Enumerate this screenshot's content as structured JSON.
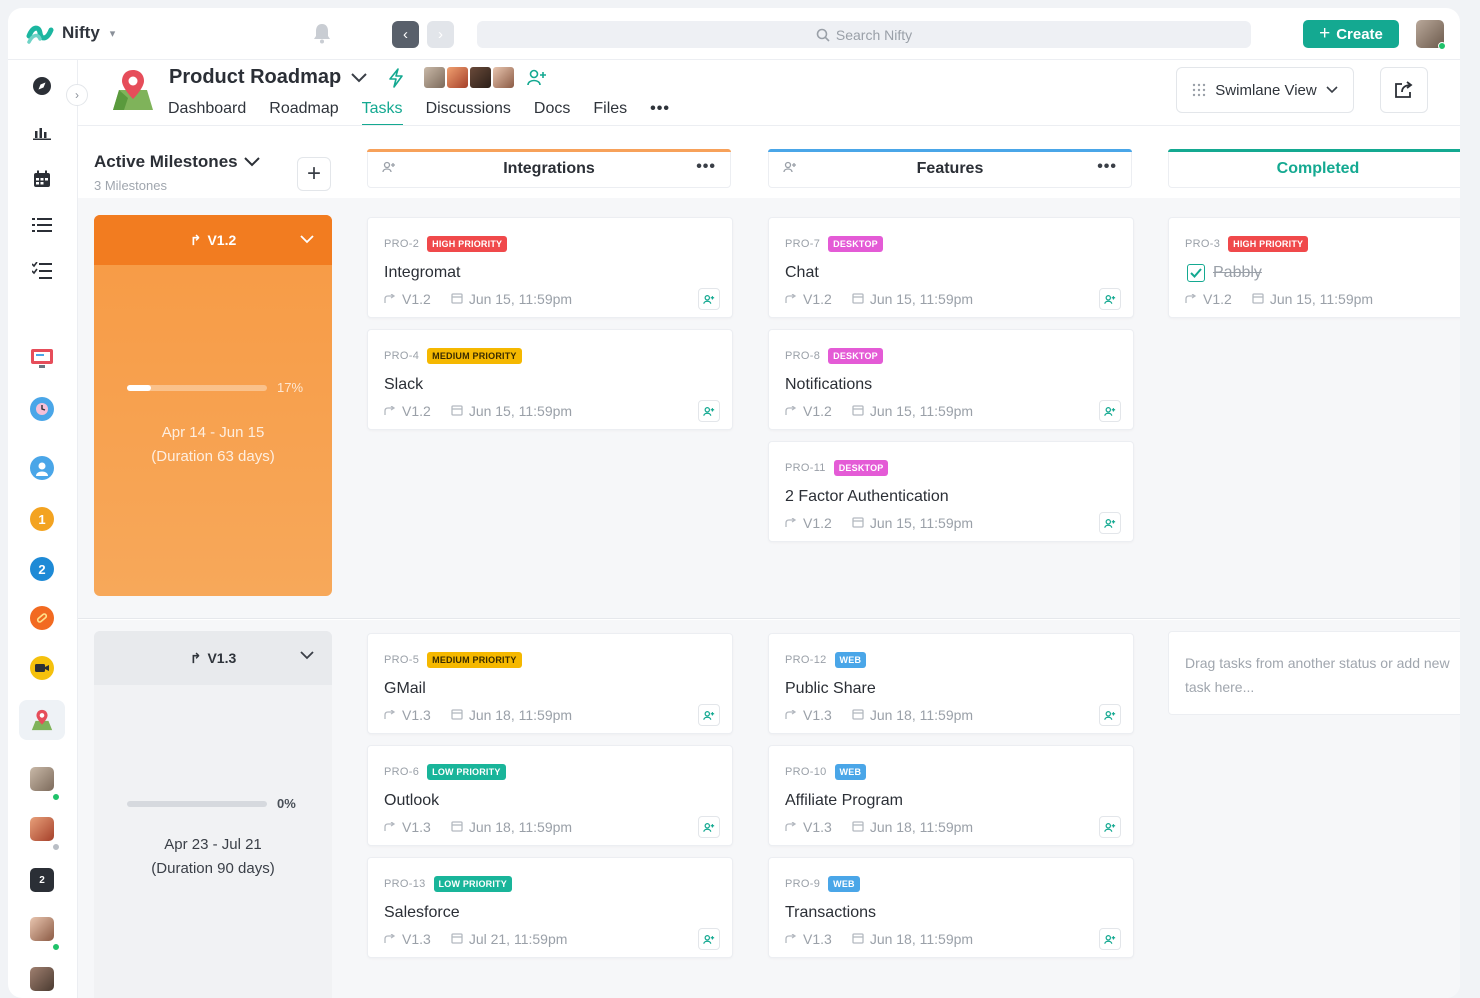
{
  "app": {
    "brand": "Nifty",
    "search_placeholder": "Search Nifty",
    "create_label": "Create"
  },
  "project": {
    "title": "Product Roadmap",
    "tabs": [
      {
        "label": "Dashboard",
        "active": false
      },
      {
        "label": "Roadmap",
        "active": false
      },
      {
        "label": "Tasks",
        "active": true
      },
      {
        "label": "Discussions",
        "active": false
      },
      {
        "label": "Docs",
        "active": false
      },
      {
        "label": "Files",
        "active": false
      }
    ],
    "view_label": "Swimlane View"
  },
  "sidebar": {
    "badges": [
      "1",
      "2",
      "2"
    ]
  },
  "milestones_panel": {
    "title": "Active Milestones",
    "count_label": "3 Milestones"
  },
  "columns": [
    {
      "title": "Integrations",
      "accent": "#f7a15a"
    },
    {
      "title": "Features",
      "accent": "#4aa6e8"
    },
    {
      "title": "Completed",
      "accent": "#14a991"
    }
  ],
  "lanes": [
    {
      "milestone": {
        "name": "V1.2",
        "progress_label": "17%",
        "progress": 0.17,
        "dates": "Apr 14 - Jun 15",
        "duration": "(Duration 63 days)"
      },
      "integrations": [
        {
          "code": "PRO-2",
          "badge": "HIGH PRIORITY",
          "badge_color": "#f0494b",
          "title": "Integromat",
          "version": "V1.2",
          "due": "Jun 15, 11:59pm"
        },
        {
          "code": "PRO-4",
          "badge": "MEDIUM PRIORITY",
          "badge_color": "#f5b800",
          "badge_text": "#3a2c00",
          "title": "Slack",
          "version": "V1.2",
          "due": "Jun 15, 11:59pm"
        }
      ],
      "features": [
        {
          "code": "PRO-7",
          "badge": "DESKTOP",
          "badge_color": "#e45bd6",
          "title": "Chat",
          "version": "V1.2",
          "due": "Jun 15, 11:59pm"
        },
        {
          "code": "PRO-8",
          "badge": "DESKTOP",
          "badge_color": "#e45bd6",
          "title": "Notifications",
          "version": "V1.2",
          "due": "Jun 15, 11:59pm"
        },
        {
          "code": "PRO-11",
          "badge": "DESKTOP",
          "badge_color": "#e45bd6",
          "title": "2 Factor Authentication",
          "version": "V1.2",
          "due": "Jun 15, 11:59pm"
        }
      ],
      "completed": [
        {
          "code": "PRO-3",
          "badge": "HIGH PRIORITY",
          "badge_color": "#f0494b",
          "title": "Pabbly",
          "version": "V1.2",
          "due": "Jun 15, 11:59pm",
          "done": true
        }
      ]
    },
    {
      "milestone": {
        "name": "V1.3",
        "progress_label": "0%",
        "progress": 0,
        "dates": "Apr 23 - Jul 21",
        "duration": "(Duration 90 days)"
      },
      "integrations": [
        {
          "code": "PRO-5",
          "badge": "MEDIUM PRIORITY",
          "badge_color": "#f5b800",
          "badge_text": "#3a2c00",
          "title": "GMail",
          "version": "V1.3",
          "due": "Jun 18, 11:59pm"
        },
        {
          "code": "PRO-6",
          "badge": "LOW PRIORITY",
          "badge_color": "#19b59a",
          "title": "Outlook",
          "version": "V1.3",
          "due": "Jun 18, 11:59pm"
        },
        {
          "code": "PRO-13",
          "badge": "LOW PRIORITY",
          "badge_color": "#19b59a",
          "title": "Salesforce",
          "version": "V1.3",
          "due": "Jul 21, 11:59pm"
        }
      ],
      "features": [
        {
          "code": "PRO-12",
          "badge": "WEB",
          "badge_color": "#4aa6e8",
          "title": "Public Share",
          "version": "V1.3",
          "due": "Jun 18, 11:59pm"
        },
        {
          "code": "PRO-10",
          "badge": "WEB",
          "badge_color": "#4aa6e8",
          "title": "Affiliate Program",
          "version": "V1.3",
          "due": "Jun 18, 11:59pm"
        },
        {
          "code": "PRO-9",
          "badge": "WEB",
          "badge_color": "#4aa6e8",
          "title": "Transactions",
          "version": "V1.3",
          "due": "Jun 18, 11:59pm"
        }
      ],
      "completed_empty": "Drag tasks from another status or add new task here..."
    }
  ]
}
